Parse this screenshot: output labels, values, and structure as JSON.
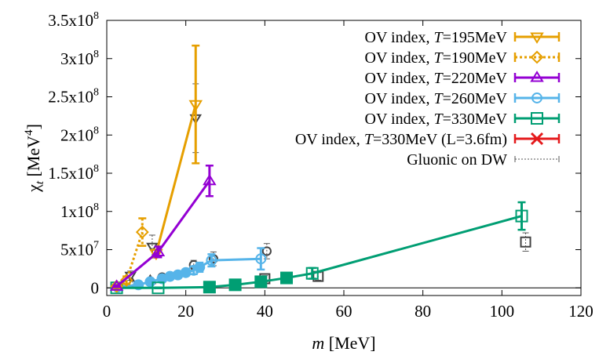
{
  "chart_data": {
    "type": "scatter",
    "xlabel": "m [MeV]",
    "ylabel": "χt [MeV⁴]",
    "xlim": [
      0,
      120
    ],
    "ylim": [
      -10000000,
      350000000
    ],
    "x_ticks": [
      0,
      20,
      40,
      60,
      80,
      100,
      120
    ],
    "x_tick_labels": [
      "0",
      "20",
      "40",
      "60",
      "80",
      "100",
      "120"
    ],
    "y_ticks": [
      0,
      50000000,
      100000000,
      150000000,
      200000000,
      250000000,
      300000000,
      350000000
    ],
    "y_tick_labels": [
      {
        "mant": "0",
        "exp": ""
      },
      {
        "mant": "5x10",
        "exp": "7"
      },
      {
        "mant": "1x10",
        "exp": "8"
      },
      {
        "mant": "1.5x10",
        "exp": "8"
      },
      {
        "mant": "2x10",
        "exp": "8"
      },
      {
        "mant": "2.5x10",
        "exp": "8"
      },
      {
        "mant": "3x10",
        "exp": "8"
      },
      {
        "mant": "3.5x10",
        "exp": "8"
      }
    ],
    "grid": false,
    "legend_position": "top-right",
    "legend": [
      {
        "prefix": "OV index, ",
        "ital": "T",
        "suffix": "=195MeV",
        "color": "#e69f00",
        "marker": "tri-down",
        "dotted": false
      },
      {
        "prefix": "OV index, ",
        "ital": "T",
        "suffix": "=190MeV",
        "color": "#e69f00",
        "marker": "diamond",
        "dotted": true
      },
      {
        "prefix": "OV index, ",
        "ital": "T",
        "suffix": "=220MeV",
        "color": "#9400d3",
        "marker": "tri-up",
        "dotted": false
      },
      {
        "prefix": "OV index, ",
        "ital": "T",
        "suffix": "=260MeV",
        "color": "#56b4e9",
        "marker": "circle",
        "dotted": false
      },
      {
        "prefix": "OV index, ",
        "ital": "T",
        "suffix": "=330MeV",
        "color": "#009e73",
        "marker": "square",
        "dotted": false
      },
      {
        "prefix": "OV index, ",
        "ital": "T",
        "suffix": "=330MeV (L=3.6fm)",
        "color": "#e41a1c",
        "marker": "x",
        "dotted": false
      },
      {
        "prefix": "Gluonic on DW",
        "ital": "",
        "suffix": "",
        "color": "#555555",
        "marker": "none",
        "dotted": true
      }
    ],
    "series": [
      {
        "name": "OV index, T=195MeV",
        "color": "#e69f00",
        "marker": "tri-down",
        "line": "solid",
        "x": [
          12.5,
          22.5
        ],
        "y": [
          45000000,
          240000000
        ],
        "err": [
          5000000,
          77000000
        ]
      },
      {
        "name": "OV index, T=190MeV",
        "color": "#e69f00",
        "marker": "diamond",
        "line": "dotted",
        "x": [
          2.5,
          5.0,
          9.0
        ],
        "y": [
          2000000,
          10000000,
          73000000
        ],
        "err": [
          2000000,
          5000000,
          18000000
        ]
      },
      {
        "name": "OV index, T=220MeV",
        "color": "#9400d3",
        "marker": "tri-up",
        "line": "solid",
        "x": [
          2.5,
          13.0,
          26.0
        ],
        "y": [
          2000000,
          47000000,
          140000000
        ],
        "err": [
          1000000,
          7000000,
          20000000
        ]
      },
      {
        "name": "OV index, T=260MeV",
        "color": "#56b4e9",
        "marker": "circle",
        "line": "solid",
        "x": [
          2.7,
          8.0,
          11.0,
          14.0,
          16.0,
          18.0,
          20.0,
          22.0,
          23.5,
          26.5,
          39.0
        ],
        "y": [
          1000000,
          4000000,
          8000000,
          12000000,
          15000000,
          17000000,
          20000000,
          23000000,
          27000000,
          36000000,
          38000000
        ],
        "err": [
          1000000,
          2000000,
          2000000,
          3000000,
          3000000,
          3000000,
          4000000,
          5000000,
          6000000,
          8000000,
          14000000
        ],
        "filled": [
          false,
          true,
          true,
          true,
          true,
          true,
          true,
          false,
          true,
          false,
          false
        ]
      },
      {
        "name": "OV index, T=330MeV",
        "color": "#009e73",
        "marker": "square",
        "line": "solid",
        "x": [
          2.5,
          13.0,
          26.0,
          32.5,
          39.0,
          45.5,
          52.0,
          105.0
        ],
        "y": [
          0,
          0,
          1000000,
          4000000,
          8000000,
          13000000,
          19000000,
          94000000
        ],
        "err": [
          500000,
          500000,
          1000000,
          2000000,
          3000000,
          4000000,
          7000000,
          18000000
        ],
        "filled": [
          false,
          false,
          true,
          true,
          true,
          true,
          false,
          false
        ]
      },
      {
        "name": "OV index, T=330MeV (L=3.6fm)",
        "color": "#e41a1c",
        "marker": "x",
        "line": "none",
        "x": [
          26.0,
          39.0
        ],
        "y": [
          1000000,
          8000000
        ],
        "err": [
          1000000,
          2000000
        ]
      },
      {
        "name": "Gluonic on DW",
        "color": "#555555",
        "marker": "open-misc",
        "line": "none",
        "x": [
          3.0,
          6.0,
          11.5,
          22.5,
          6.5,
          11.0,
          14.0,
          22.0,
          27.0,
          40.5,
          40.0,
          53.5,
          106.0
        ],
        "y": [
          3000000,
          16000000,
          54000000,
          222000000,
          6000000,
          10000000,
          14000000,
          30000000,
          38000000,
          48000000,
          12000000,
          15000000,
          60000000
        ],
        "err": [
          2000000,
          6000000,
          15000000,
          45000000,
          3000000,
          3000000,
          4000000,
          6000000,
          9000000,
          10000000,
          4000000,
          5000000,
          12000000
        ],
        "shapes": [
          "tri-down",
          "tri-down",
          "tri-down",
          "tri-down",
          "tri-up",
          "tri-up",
          "circle",
          "circle",
          "circle",
          "circle",
          "square",
          "square",
          "square"
        ]
      }
    ]
  }
}
